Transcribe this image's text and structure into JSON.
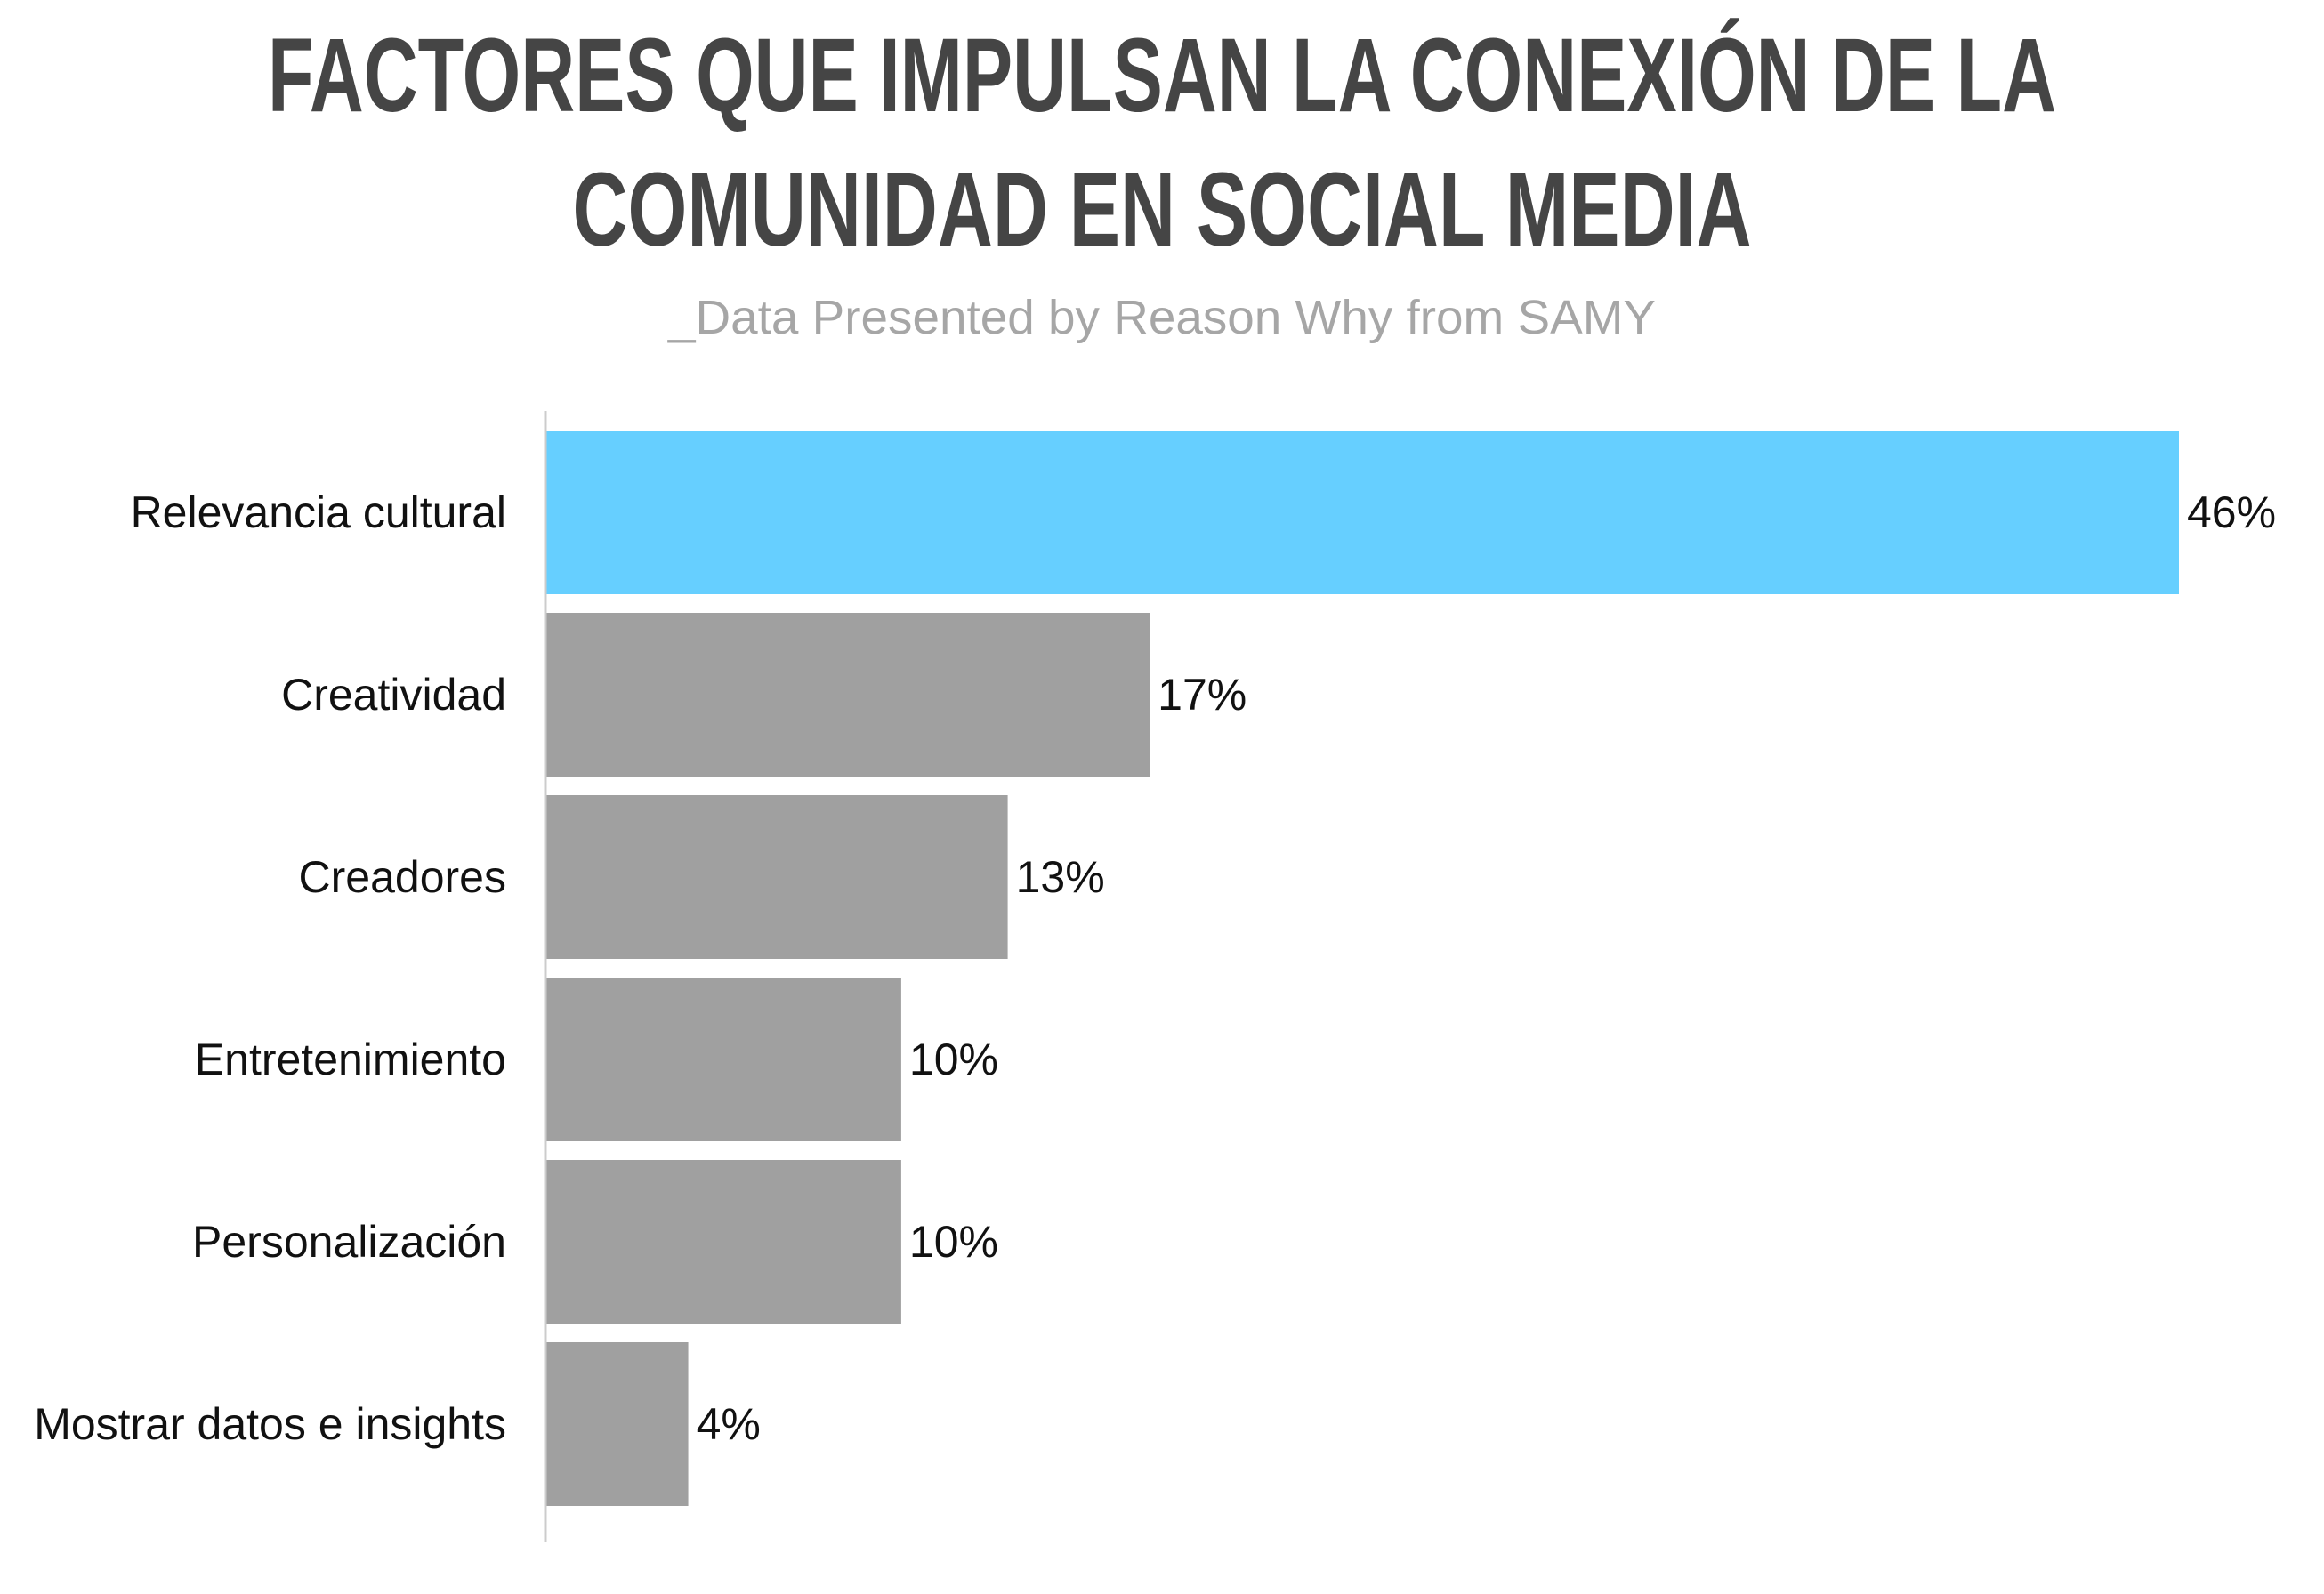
{
  "chart_data": {
    "type": "bar",
    "orientation": "horizontal",
    "title_lines": [
      "FACTORES QUE IMPULSAN LA CONEXIÓN DE LA",
      "COMUNIDAD EN SOCIAL MEDIA"
    ],
    "subtitle": "_Data Presented by Reason Why from SAMY",
    "categories": [
      "Relevancia cultural",
      "Creatividad",
      "Creadores",
      "Entretenimiento",
      "Personalización",
      "Mostrar datos e insights"
    ],
    "values": [
      46,
      17,
      13,
      10,
      10,
      4
    ],
    "value_labels": [
      "46%",
      "17%",
      "13%",
      "10%",
      "10%",
      "4%"
    ],
    "xlim": [
      0,
      46
    ],
    "grid": false,
    "highlight_color": "#66cfff",
    "bar_color": "#a0a0a0",
    "axis_color": "#cccccc",
    "title_color": "#454545",
    "subtitle_color": "#a6a6a6"
  }
}
